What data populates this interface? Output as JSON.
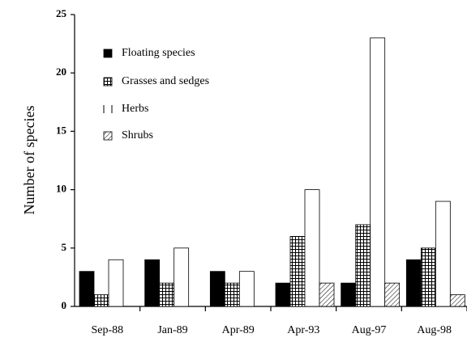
{
  "chart_data": {
    "type": "bar",
    "y_label": "Number of species",
    "categories": [
      "Sep-88",
      "Jan-89",
      "Apr-89",
      "Apr-93",
      "Aug-97",
      "Aug-98"
    ],
    "series": [
      {
        "name": "Floating species",
        "color": "#000000",
        "pattern": "solid",
        "values": [
          3,
          4,
          3,
          2,
          2,
          4
        ]
      },
      {
        "name": "Grasses and sedges",
        "color": "#000000",
        "pattern": "grid",
        "values": [
          1,
          2,
          2,
          6,
          7,
          5
        ]
      },
      {
        "name": "Herbs",
        "color": "#000000",
        "pattern": "none",
        "values": [
          4,
          5,
          3,
          10,
          23,
          9
        ]
      },
      {
        "name": "Shrubs",
        "color": "#000000",
        "pattern": "hatch",
        "values": [
          0,
          0,
          0,
          2,
          2,
          1
        ]
      }
    ],
    "ylim": [
      0,
      25
    ],
    "yticks": [
      0,
      5,
      10,
      15,
      20,
      25
    ],
    "grid": false,
    "legend": "upper left"
  }
}
